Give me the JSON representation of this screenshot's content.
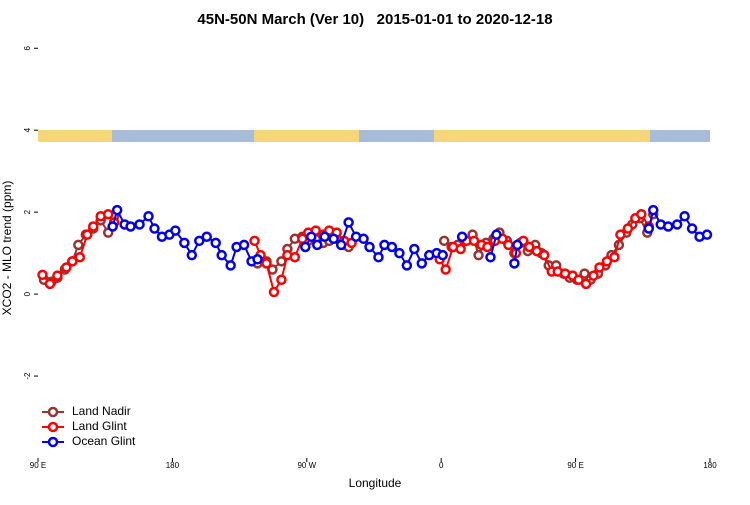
{
  "chart_data": {
    "type": "line",
    "title": "45N-50N March (Ver 10)   2015-01-01 to 2020-12-18",
    "x_label": "Longitude",
    "y_label": "XCO2 - MLO trend (ppm)",
    "xlim": [
      90,
      540
    ],
    "ylim": [
      -4,
      6.25
    ],
    "xticks": [
      {
        "value": 90,
        "label": "90 E"
      },
      180,
      {
        "value": 270,
        "label": "90 W"
      },
      {
        "value": 360,
        "label": "0"
      },
      {
        "value": 450,
        "label": "90 E"
      },
      {
        "value": 540,
        "label": "180"
      }
    ],
    "yticks": [
      -2,
      0,
      2,
      4,
      6
    ],
    "legend": "bottom-left",
    "series": [
      {
        "name": "Land Nadir",
        "color": "#993333",
        "x": [
          94,
          99,
          103,
          108,
          113,
          117,
          122,
          127,
          132,
          137,
          141,
          null,
          237,
          243,
          247,
          253,
          257,
          262,
          267,
          271,
          276,
          281,
          285,
          290,
          295,
          298,
          null,
          362,
          367,
          371,
          376,
          381,
          385,
          390,
          395,
          399,
          404,
          409,
          413,
          418,
          423,
          427,
          432,
          437,
          442,
          446,
          451,
          456,
          460,
          465,
          470,
          474,
          479,
          484,
          488,
          493,
          498,
          502
        ],
        "values": [
          0.35,
          0.3,
          0.4,
          0.6,
          0.8,
          1.2,
          1.45,
          1.6,
          1.8,
          1.5,
          1.9,
          null,
          0.75,
          0.8,
          0.6,
          0.8,
          1.1,
          1.35,
          1.4,
          1.3,
          1.35,
          1.25,
          1.3,
          1.35,
          1.2,
          1.15,
          null,
          1.3,
          1.15,
          1.2,
          1.3,
          1.45,
          0.95,
          1.25,
          1.35,
          1.5,
          1.3,
          1.0,
          1.25,
          1.05,
          1.2,
          1.0,
          0.7,
          0.7,
          0.5,
          0.4,
          0.35,
          0.5,
          0.35,
          0.5,
          0.7,
          0.95,
          1.2,
          1.5,
          1.7,
          1.85,
          1.5,
          1.95
        ]
      },
      {
        "name": "Land Glint",
        "color": "#ff0000",
        "x": [
          93,
          98,
          103,
          109,
          113,
          118,
          123,
          127,
          132,
          137,
          141,
          null,
          235,
          239,
          243,
          248,
          253,
          257,
          262,
          267,
          271,
          276,
          281,
          285,
          290,
          295,
          300,
          null,
          359,
          363,
          368,
          373,
          377,
          382,
          387,
          391,
          396,
          401,
          405,
          410,
          415,
          419,
          424,
          429,
          434,
          438,
          443,
          448,
          452,
          457,
          462,
          466,
          471,
          476,
          480,
          485,
          490,
          494,
          499
        ],
        "values": [
          0.47,
          0.25,
          0.45,
          0.65,
          0.8,
          0.9,
          1.45,
          1.65,
          1.9,
          1.95,
          1.75,
          null,
          1.3,
          0.95,
          0.75,
          0.05,
          0.35,
          0.95,
          0.9,
          1.35,
          1.5,
          1.55,
          1.45,
          1.55,
          1.5,
          1.3,
          1.25,
          null,
          0.85,
          0.6,
          1.15,
          1.1,
          1.3,
          1.3,
          1.2,
          1.15,
          1.3,
          1.35,
          1.2,
          1.0,
          1.3,
          1.15,
          1.05,
          0.95,
          0.55,
          0.55,
          0.5,
          0.45,
          0.35,
          0.25,
          0.45,
          0.65,
          0.8,
          0.9,
          1.45,
          1.6,
          1.85,
          1.95,
          1.65
        ]
      },
      {
        "name": "Ocean Glint",
        "color": "#0000ee",
        "x": [
          140,
          143,
          148,
          152,
          158,
          164,
          168,
          173,
          178,
          182,
          188,
          193,
          198,
          203,
          209,
          213,
          219,
          223,
          228,
          233,
          237,
          null,
          269,
          273,
          277,
          282,
          288,
          293,
          298,
          303,
          308,
          312,
          318,
          322,
          327,
          332,
          337,
          342,
          347,
          352,
          357,
          361,
          null,
          374,
          null,
          393,
          397,
          null,
          409,
          411,
          null,
          499,
          502,
          507,
          512,
          518,
          523,
          528,
          533,
          538
        ],
        "values": [
          1.65,
          2.05,
          1.7,
          1.65,
          1.7,
          1.9,
          1.6,
          1.4,
          1.45,
          1.55,
          1.25,
          0.95,
          1.3,
          1.4,
          1.25,
          0.95,
          0.7,
          1.15,
          1.2,
          0.8,
          0.85,
          null,
          1.15,
          1.4,
          1.2,
          1.4,
          1.35,
          1.2,
          1.75,
          1.4,
          1.35,
          1.15,
          0.9,
          1.2,
          1.15,
          1.0,
          0.7,
          1.1,
          0.75,
          0.95,
          1.0,
          0.95,
          null,
          1.4,
          null,
          0.9,
          1.45,
          null,
          0.75,
          1.2,
          null,
          1.6,
          2.05,
          1.7,
          1.65,
          1.7,
          1.9,
          1.6,
          1.4,
          1.45
        ]
      }
    ]
  }
}
